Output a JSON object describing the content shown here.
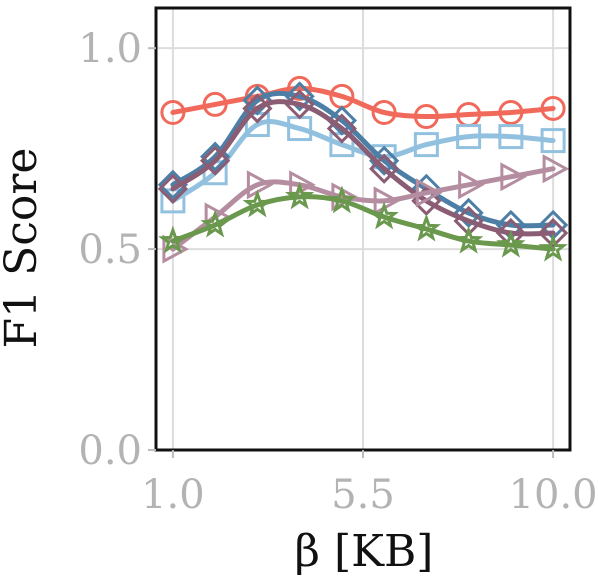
{
  "chart_data": {
    "type": "line",
    "title": "",
    "xlabel": "β [KB]",
    "ylabel": "F1 Score",
    "xlim": [
      0.6,
      10.4
    ],
    "ylim": [
      0.0,
      1.1
    ],
    "xticks": [
      1.0,
      5.5,
      10.0
    ],
    "xtick_labels": [
      "1.0",
      "5.5",
      "10.0"
    ],
    "yticks": [
      0.0,
      0.5,
      1.0
    ],
    "ytick_labels": [
      "0.0",
      "0.5",
      "1.0"
    ],
    "grid": true,
    "x": [
      1.0,
      2.0,
      3.0,
      4.0,
      5.0,
      6.0,
      7.0,
      8.0,
      9.0,
      10.0
    ],
    "series": [
      {
        "marker": "circle",
        "color": "#f0695a",
        "values": [
          0.84,
          0.86,
          0.88,
          0.9,
          0.88,
          0.84,
          0.83,
          0.835,
          0.84,
          0.85
        ]
      },
      {
        "marker": "square",
        "color": "#92c1e0",
        "values": [
          0.62,
          0.69,
          0.81,
          0.8,
          0.76,
          0.73,
          0.76,
          0.78,
          0.78,
          0.77
        ]
      },
      {
        "marker": "diamond",
        "color": "#4d7fa6",
        "values": [
          0.66,
          0.73,
          0.87,
          0.88,
          0.82,
          0.72,
          0.65,
          0.59,
          0.56,
          0.56
        ]
      },
      {
        "marker": "diamond",
        "color": "#8a5d74",
        "values": [
          0.65,
          0.72,
          0.85,
          0.86,
          0.8,
          0.7,
          0.62,
          0.57,
          0.54,
          0.54
        ]
      },
      {
        "marker": "triangle-right",
        "color": "#b48ea0",
        "values": [
          0.5,
          0.58,
          0.66,
          0.66,
          0.63,
          0.62,
          0.64,
          0.66,
          0.68,
          0.7
        ]
      },
      {
        "marker": "star",
        "color": "#6a994e",
        "values": [
          0.52,
          0.56,
          0.61,
          0.63,
          0.62,
          0.58,
          0.55,
          0.52,
          0.51,
          0.5
        ]
      }
    ]
  }
}
